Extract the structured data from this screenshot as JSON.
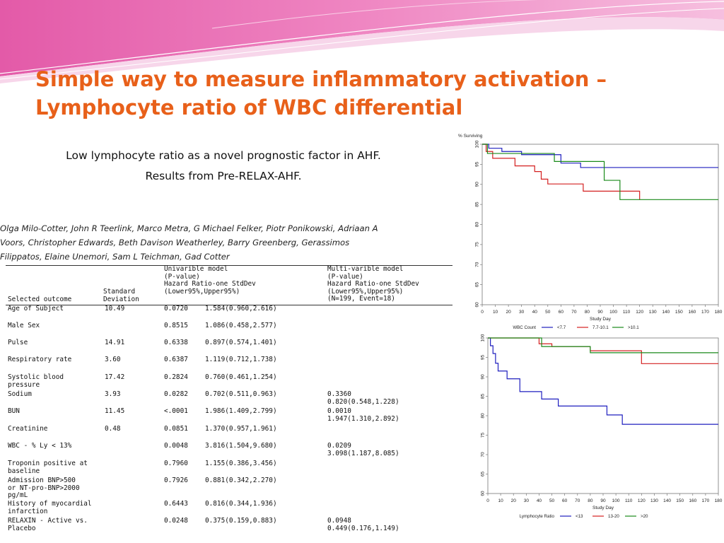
{
  "slide": {
    "title_lines": [
      "Simple way to measure inflammatory activation –",
      "Lymphocyte ratio of WBC differential"
    ]
  },
  "paper": {
    "title_lines": [
      "Low lymphocyte ratio as a novel prognostic factor in AHF.",
      "Results from Pre-RELAX-AHF."
    ],
    "author_lines": [
      "Olga Milo-Cotter, John R Teerlink, Marco Metra, G Michael Felker, Piotr Ponikowski, Adriaan A",
      "Voors, Christopher Edwards, Beth Davison Weatherley, Barry Greenberg, Gerassimos",
      "Filippatos,    Elaine Unemori, Sam L Teichman, Gad Cotter"
    ]
  },
  "table": {
    "headers": {
      "selected_outcome": "Selected outcome",
      "standard_deviation": [
        "Standard",
        "Deviation"
      ],
      "univariable": [
        "Univarible model",
        "(P-value)",
        "Hazard Ratio-one StdDev",
        "(Lower95%,Upper95%)"
      ],
      "multivariable": [
        "Multi-varible model",
        "(P-value)",
        "Hazard Ratio-one StdDev",
        "(Lower95%,Upper95%)",
        "(N=199, Event=18)"
      ]
    },
    "rows": [
      {
        "outcome": [
          "Age of Subject"
        ],
        "sd": "10.49",
        "p": "0.0720",
        "hr": "1.584(0.960,2.616)",
        "multi": []
      },
      {
        "outcome": [
          "Male Sex"
        ],
        "sd": "",
        "p": "0.8515",
        "hr": "1.086(0.458,2.577)",
        "multi": []
      },
      {
        "outcome": [
          "Pulse"
        ],
        "sd": "14.91",
        "p": "0.6338",
        "hr": "0.897(0.574,1.401)",
        "multi": []
      },
      {
        "outcome": [
          "Respiratory rate"
        ],
        "sd": "3.60",
        "p": "0.6387",
        "hr": "1.119(0.712,1.738)",
        "multi": []
      },
      {
        "outcome": [
          "Systolic blood",
          "pressure"
        ],
        "sd": "17.42",
        "p": "0.2824",
        "hr": "0.760(0.461,1.254)",
        "multi": []
      },
      {
        "outcome": [
          "Sodium"
        ],
        "sd": "3.93",
        "p": "0.0282",
        "hr": "0.702(0.511,0.963)",
        "multi": [
          "0.3360",
          "0.820(0.548,1.228)"
        ]
      },
      {
        "outcome": [
          "BUN"
        ],
        "sd": "11.45",
        "p": "<.0001",
        "hr": "1.986(1.409,2.799)",
        "multi": [
          "0.0010",
          "1.947(1.310,2.892)"
        ]
      },
      {
        "outcome": [
          "Creatinine"
        ],
        "sd": "0.48",
        "p": "0.0851",
        "hr": "1.370(0.957,1.961)",
        "multi": []
      },
      {
        "outcome": [
          "WBC - % Ly < 13%"
        ],
        "sd": "",
        "p": "0.0048",
        "hr": "3.816(1.504,9.680)",
        "multi": [
          "0.0209",
          "3.098(1.187,8.085)"
        ]
      },
      {
        "outcome": [
          "Troponin positive at",
          "baseline"
        ],
        "sd": "",
        "p": "0.7960",
        "hr": "1.155(0.386,3.456)",
        "multi": []
      },
      {
        "outcome": [
          "Admission BNP>500",
          "or NT-pro-BNP>2000",
          "pg/mL"
        ],
        "sd": "",
        "p": "0.7926",
        "hr": "0.881(0.342,2.270)",
        "multi": []
      },
      {
        "outcome": [
          "History of myocardial",
          "infarction"
        ],
        "sd": "",
        "p": "0.6443",
        "hr": "0.816(0.344,1.936)",
        "multi": []
      },
      {
        "outcome": [
          "RELAXIN - Active vs.",
          "Placebo"
        ],
        "sd": "",
        "p": "0.0248",
        "hr": "0.375(0.159,0.883)",
        "multi": [
          "0.0948",
          "0.449(0.176,1.149)"
        ]
      }
    ]
  },
  "chart_data": [
    {
      "type": "line",
      "step": true,
      "ylabel": "% Surviving",
      "xlabel": "Study Day",
      "xlim": [
        0,
        180
      ],
      "ylim": [
        60,
        100
      ],
      "x_ticks": [
        0,
        10,
        20,
        30,
        40,
        50,
        60,
        70,
        80,
        90,
        100,
        110,
        120,
        130,
        140,
        150,
        160,
        170,
        180
      ],
      "y_ticks": [
        60,
        65,
        70,
        75,
        80,
        85,
        90,
        95,
        100
      ],
      "legend_title": "WBC Count",
      "legend_position": "bottom",
      "series": [
        {
          "name": "<7.7",
          "color": "#1f1fbf",
          "points": [
            [
              0,
              100
            ],
            [
              5,
              99
            ],
            [
              15,
              98.2
            ],
            [
              30,
              97.4
            ],
            [
              60,
              95.3
            ],
            [
              75,
              94.2
            ],
            [
              180,
              94.2
            ]
          ]
        },
        {
          "name": "7.7-10.1",
          "color": "#d42020",
          "points": [
            [
              0,
              100
            ],
            [
              3,
              98.2
            ],
            [
              8,
              96.5
            ],
            [
              25,
              94.6
            ],
            [
              40,
              93.2
            ],
            [
              45,
              91.3
            ],
            [
              50,
              90.1
            ],
            [
              77,
              88.3
            ],
            [
              120,
              86.1
            ]
          ]
        },
        {
          "name": ">10.1",
          "color": "#1a8a1a",
          "points": [
            [
              0,
              100
            ],
            [
              4,
              97.7
            ],
            [
              55,
              95.7
            ],
            [
              93,
              91
            ],
            [
              105,
              86.2
            ],
            [
              180,
              86.2
            ]
          ]
        }
      ]
    },
    {
      "type": "line",
      "step": true,
      "xlabel": "Study Day",
      "xlim": [
        0,
        180
      ],
      "ylim": [
        60,
        100
      ],
      "x_ticks": [
        0,
        10,
        20,
        30,
        40,
        50,
        60,
        70,
        80,
        90,
        100,
        110,
        120,
        130,
        140,
        150,
        160,
        170,
        180
      ],
      "y_ticks": [
        60,
        65,
        70,
        75,
        80,
        85,
        90,
        95,
        100
      ],
      "legend_title": "Lymphocyte Ratio",
      "legend_position": "bottom",
      "series": [
        {
          "name": "<13",
          "color": "#1f1fbf",
          "points": [
            [
              0,
              100
            ],
            [
              2,
              98
            ],
            [
              4,
              96
            ],
            [
              6,
              93.5
            ],
            [
              8,
              91.5
            ],
            [
              15,
              89.5
            ],
            [
              25,
              86.2
            ],
            [
              42,
              84.3
            ],
            [
              55,
              82.5
            ],
            [
              93,
              80.2
            ],
            [
              105,
              77.8
            ],
            [
              180,
              77.8
            ]
          ]
        },
        {
          "name": "13-20",
          "color": "#d42020",
          "points": [
            [
              0,
              100
            ],
            [
              40,
              98.5
            ],
            [
              50,
              97.8
            ],
            [
              80,
              96.7
            ],
            [
              120,
              93.4
            ],
            [
              180,
              93.4
            ]
          ]
        },
        {
          "name": ">20",
          "color": "#1a8a1a",
          "points": [
            [
              0,
              100
            ],
            [
              42,
              97.8
            ],
            [
              80,
              96.2
            ],
            [
              180,
              96.2
            ]
          ]
        }
      ]
    }
  ]
}
